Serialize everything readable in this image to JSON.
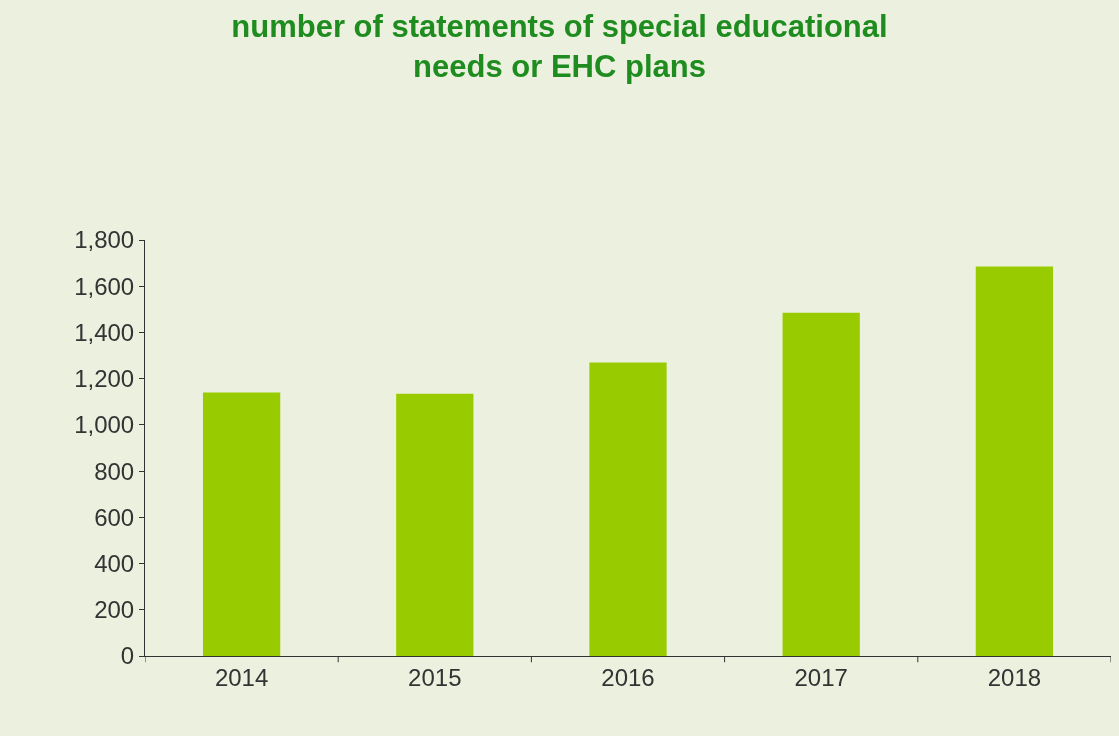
{
  "chart_data": {
    "type": "bar",
    "title": "number of statements of special educational\nneeds or EHC plans",
    "categories": [
      "2014",
      "2015",
      "2016",
      "2017",
      "2018"
    ],
    "values": [
      1140,
      1135,
      1270,
      1485,
      1685
    ],
    "color": "#99cc00",
    "ylim": [
      0,
      1800
    ],
    "yticks": [
      {
        "value": 0,
        "label": "0"
      },
      {
        "value": 200,
        "label": "200"
      },
      {
        "value": 400,
        "label": "400"
      },
      {
        "value": 600,
        "label": "600"
      },
      {
        "value": 800,
        "label": "800"
      },
      {
        "value": 1000,
        "label": "1,000"
      },
      {
        "value": 1200,
        "label": "1,200"
      },
      {
        "value": 1400,
        "label": "1,400"
      },
      {
        "value": 1600,
        "label": "1,600"
      },
      {
        "value": 1800,
        "label": "1,800"
      }
    ],
    "tick_labels": "xy"
  }
}
